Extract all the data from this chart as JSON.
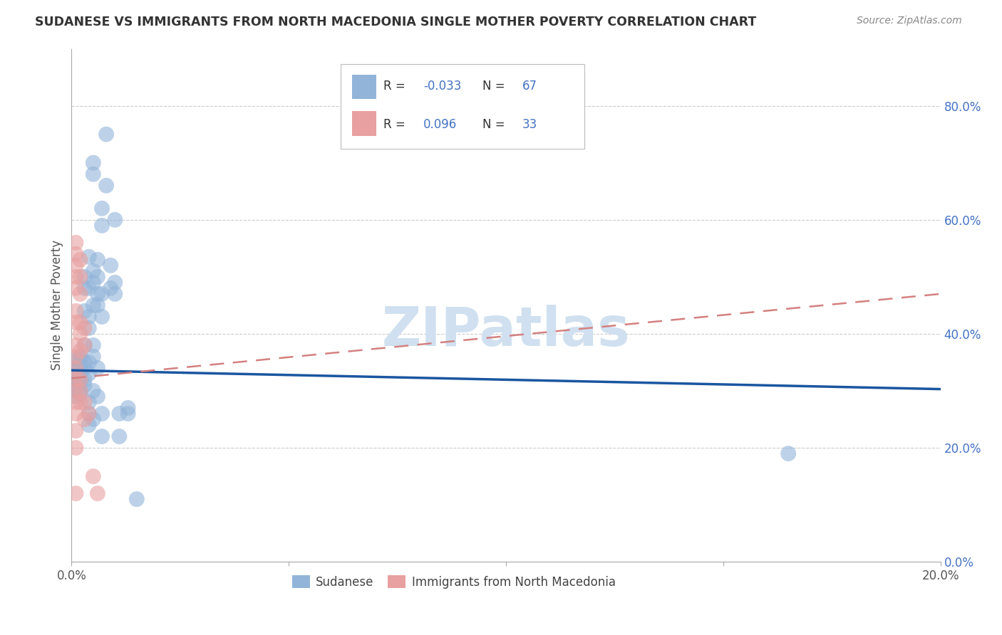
{
  "title": "SUDANESE VS IMMIGRANTS FROM NORTH MACEDONIA SINGLE MOTHER POVERTY CORRELATION CHART",
  "source": "Source: ZipAtlas.com",
  "ylabel": "Single Mother Poverty",
  "watermark": "ZIPatlas",
  "xlim": [
    0.0,
    0.2
  ],
  "ylim": [
    0.0,
    0.9
  ],
  "blue_scatter": [
    [
      0.001,
      0.335
    ],
    [
      0.001,
      0.32
    ],
    [
      0.001,
      0.34
    ],
    [
      0.001,
      0.355
    ],
    [
      0.001,
      0.3
    ],
    [
      0.001,
      0.31
    ],
    [
      0.001,
      0.29
    ],
    [
      0.001,
      0.325
    ],
    [
      0.002,
      0.345
    ],
    [
      0.002,
      0.33
    ],
    [
      0.002,
      0.315
    ],
    [
      0.002,
      0.3
    ],
    [
      0.002,
      0.355
    ],
    [
      0.002,
      0.36
    ],
    [
      0.002,
      0.32
    ],
    [
      0.002,
      0.295
    ],
    [
      0.003,
      0.5
    ],
    [
      0.003,
      0.48
    ],
    [
      0.003,
      0.44
    ],
    [
      0.003,
      0.38
    ],
    [
      0.003,
      0.35
    ],
    [
      0.003,
      0.34
    ],
    [
      0.003,
      0.32
    ],
    [
      0.003,
      0.31
    ],
    [
      0.004,
      0.535
    ],
    [
      0.004,
      0.48
    ],
    [
      0.004,
      0.43
    ],
    [
      0.004,
      0.41
    ],
    [
      0.004,
      0.35
    ],
    [
      0.004,
      0.33
    ],
    [
      0.004,
      0.28
    ],
    [
      0.004,
      0.26
    ],
    [
      0.004,
      0.24
    ],
    [
      0.005,
      0.7
    ],
    [
      0.005,
      0.68
    ],
    [
      0.005,
      0.51
    ],
    [
      0.005,
      0.49
    ],
    [
      0.005,
      0.45
    ],
    [
      0.005,
      0.38
    ],
    [
      0.005,
      0.36
    ],
    [
      0.005,
      0.3
    ],
    [
      0.005,
      0.25
    ],
    [
      0.006,
      0.53
    ],
    [
      0.006,
      0.5
    ],
    [
      0.006,
      0.47
    ],
    [
      0.006,
      0.45
    ],
    [
      0.006,
      0.34
    ],
    [
      0.006,
      0.29
    ],
    [
      0.007,
      0.62
    ],
    [
      0.007,
      0.59
    ],
    [
      0.007,
      0.47
    ],
    [
      0.007,
      0.43
    ],
    [
      0.007,
      0.26
    ],
    [
      0.007,
      0.22
    ],
    [
      0.008,
      0.75
    ],
    [
      0.008,
      0.66
    ],
    [
      0.009,
      0.52
    ],
    [
      0.009,
      0.48
    ],
    [
      0.01,
      0.6
    ],
    [
      0.01,
      0.49
    ],
    [
      0.01,
      0.47
    ],
    [
      0.011,
      0.26
    ],
    [
      0.011,
      0.22
    ],
    [
      0.013,
      0.27
    ],
    [
      0.013,
      0.26
    ],
    [
      0.015,
      0.11
    ],
    [
      0.165,
      0.19
    ]
  ],
  "pink_scatter": [
    [
      0.001,
      0.56
    ],
    [
      0.001,
      0.54
    ],
    [
      0.001,
      0.52
    ],
    [
      0.001,
      0.5
    ],
    [
      0.001,
      0.48
    ],
    [
      0.001,
      0.44
    ],
    [
      0.001,
      0.42
    ],
    [
      0.001,
      0.38
    ],
    [
      0.001,
      0.36
    ],
    [
      0.001,
      0.34
    ],
    [
      0.001,
      0.32
    ],
    [
      0.001,
      0.3
    ],
    [
      0.001,
      0.28
    ],
    [
      0.001,
      0.26
    ],
    [
      0.001,
      0.23
    ],
    [
      0.001,
      0.2
    ],
    [
      0.001,
      0.12
    ],
    [
      0.002,
      0.53
    ],
    [
      0.002,
      0.5
    ],
    [
      0.002,
      0.47
    ],
    [
      0.002,
      0.42
    ],
    [
      0.002,
      0.4
    ],
    [
      0.002,
      0.37
    ],
    [
      0.002,
      0.32
    ],
    [
      0.002,
      0.3
    ],
    [
      0.002,
      0.28
    ],
    [
      0.003,
      0.41
    ],
    [
      0.003,
      0.38
    ],
    [
      0.003,
      0.28
    ],
    [
      0.003,
      0.25
    ],
    [
      0.004,
      0.26
    ],
    [
      0.005,
      0.15
    ],
    [
      0.006,
      0.12
    ]
  ],
  "blue_line_x": [
    0.0,
    0.2
  ],
  "blue_line_y": [
    0.336,
    0.303
  ],
  "pink_line_x": [
    0.0,
    0.2
  ],
  "pink_line_y": [
    0.322,
    0.47
  ],
  "blue_scatter_color": "#92b4d9",
  "pink_scatter_color": "#e8a0a0",
  "blue_line_color": "#1a56a0",
  "pink_line_color": "#d48080",
  "ytick_color": "#4472c4",
  "xtick_color": "#555555",
  "grid_color": "#cccccc",
  "title_color": "#333333",
  "source_color": "#888888",
  "watermark_color": "#d0e0f0",
  "legend_blue_color": "#92b4d9",
  "legend_pink_color": "#e8a0a0",
  "legend_r_color": "#333333",
  "legend_val_color": "#4472c4"
}
